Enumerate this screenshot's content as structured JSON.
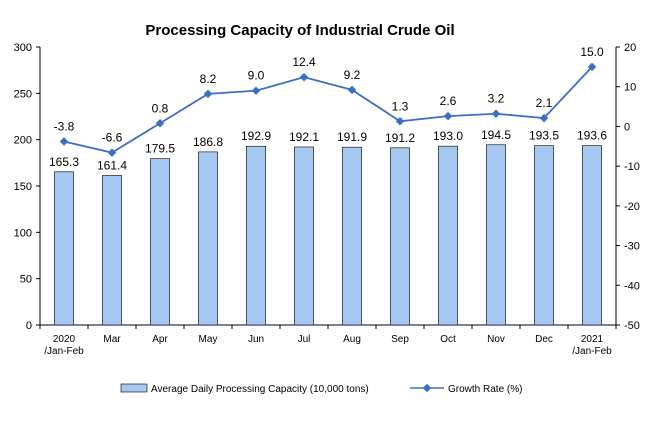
{
  "chart_data": {
    "type": "bar",
    "title": "Processing Capacity of Industrial Crude Oil",
    "categories": [
      [
        "2020",
        "/Jan-Feb"
      ],
      [
        "Mar"
      ],
      [
        "Apr"
      ],
      [
        "May"
      ],
      [
        "Jun"
      ],
      [
        "Jul"
      ],
      [
        "Aug"
      ],
      [
        "Sep"
      ],
      [
        "Oct"
      ],
      [
        "Nov"
      ],
      [
        "Dec"
      ],
      [
        "2021",
        "/Jan-Feb"
      ]
    ],
    "series": [
      {
        "name": "Average Daily Processing Capacity (10,000 tons)",
        "type": "bar",
        "axis": "left",
        "color": "#a6c8f0",
        "values": [
          165.3,
          161.4,
          179.5,
          186.8,
          192.9,
          192.1,
          191.9,
          191.2,
          193.0,
          194.5,
          193.5,
          193.6
        ],
        "labels": [
          "165.3",
          "161.4",
          "179.5",
          "186.8",
          "192.9",
          "192.1",
          "191.9",
          "191.2",
          "193.0",
          "194.5",
          "193.5",
          "193.6"
        ]
      },
      {
        "name": "Growth Rate (%)",
        "type": "line",
        "axis": "right",
        "color": "#3a6fc4",
        "values": [
          -3.8,
          -6.6,
          0.8,
          8.2,
          9.0,
          12.4,
          9.2,
          1.3,
          2.6,
          3.2,
          2.1,
          15.0
        ],
        "labels": [
          "-3.8",
          "-6.6",
          "0.8",
          "8.2",
          "9.0",
          "12.4",
          "9.2",
          "1.3",
          "2.6",
          "3.2",
          "2.1",
          "15.0"
        ]
      }
    ],
    "y_left": {
      "lim": [
        0,
        300
      ],
      "ticks": [
        0,
        50,
        100,
        150,
        200,
        250,
        300
      ]
    },
    "y_right": {
      "lim": [
        -50,
        20
      ],
      "ticks": [
        -50,
        -40,
        -30,
        -20,
        -10,
        0,
        10,
        20
      ]
    },
    "grid": false,
    "legend_position": "bottom"
  }
}
